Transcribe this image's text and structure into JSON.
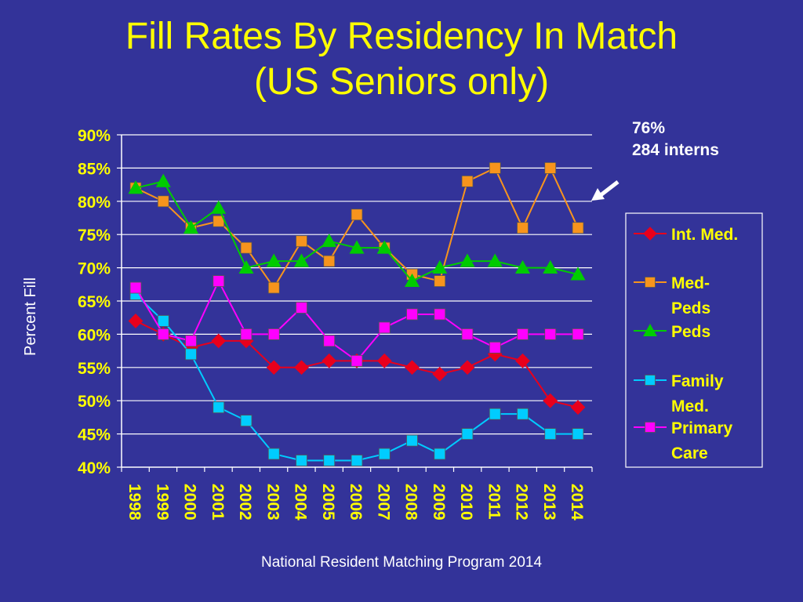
{
  "slide": {
    "title_line1": "Fill Rates By Residency In Match",
    "title_line2": "(US Seniors only)",
    "annotation_line1": "76%",
    "annotation_line2": "284 interns",
    "footer": "National Resident Matching Program 2014"
  },
  "chart_data": {
    "type": "line",
    "ylabel": "Percent Fill",
    "xlabel": "",
    "ylim": [
      40,
      90
    ],
    "yticks": [
      "40%",
      "45%",
      "50%",
      "55%",
      "60%",
      "65%",
      "70%",
      "75%",
      "80%",
      "85%",
      "90%"
    ],
    "grid": true,
    "legend_position": "right",
    "x": [
      "1998",
      "1999",
      "2000",
      "2001",
      "2002",
      "2003",
      "2004",
      "2005",
      "2006",
      "2007",
      "2008",
      "2009",
      "2010",
      "2011",
      "2012",
      "2013",
      "2014"
    ],
    "series": [
      {
        "name": "Int. Med.",
        "color": "#E8001C",
        "marker": "diamond",
        "values": [
          62,
          60,
          58,
          59,
          59,
          55,
          55,
          56,
          56,
          56,
          55,
          54,
          55,
          57,
          56,
          50,
          49
        ]
      },
      {
        "name": "Med-Peds",
        "color": "#F7941D",
        "marker": "square",
        "values": [
          82,
          80,
          76,
          77,
          73,
          67,
          74,
          71,
          78,
          73,
          69,
          68,
          83,
          85,
          76,
          85,
          76
        ]
      },
      {
        "name": "Peds",
        "color": "#00CC00",
        "marker": "triangle",
        "values": [
          82,
          83,
          76,
          79,
          70,
          71,
          71,
          74,
          73,
          73,
          68,
          70,
          71,
          71,
          70,
          70,
          69
        ]
      },
      {
        "name": "Family Med.",
        "color": "#00CCFF",
        "marker": "square",
        "values": [
          66,
          62,
          57,
          49,
          47,
          42,
          41,
          41,
          41,
          42,
          44,
          42,
          45,
          48,
          48,
          45,
          45
        ]
      },
      {
        "name": "Primary Care",
        "color": "#FF00FF",
        "marker": "square",
        "values": [
          67,
          60,
          59,
          68,
          60,
          60,
          64,
          59,
          56,
          61,
          63,
          63,
          60,
          58,
          60,
          60,
          60
        ]
      }
    ]
  }
}
